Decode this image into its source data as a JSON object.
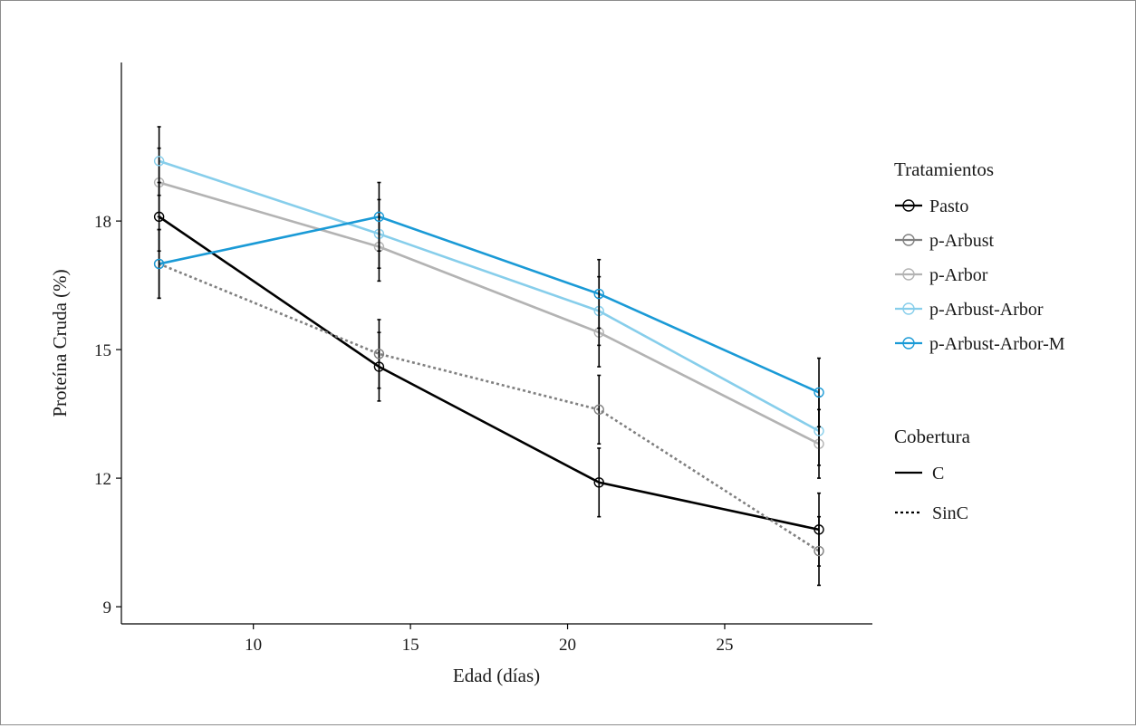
{
  "chart_data": {
    "type": "line",
    "xlabel": "Edad (días)",
    "ylabel": "Proteína Cruda (%)",
    "xlim": [
      5.8,
      29.7
    ],
    "ylim": [
      8.6,
      21.7
    ],
    "x_ticks": [
      10,
      15,
      20,
      25
    ],
    "y_ticks": [
      9,
      12,
      15,
      18
    ],
    "grid": false,
    "legend_position": "right",
    "x": [
      7,
      14,
      21,
      28
    ],
    "series": [
      {
        "name": "Pasto",
        "cobertura": "C",
        "color": "#000000",
        "values": [
          18.1,
          14.6,
          11.9,
          10.8
        ],
        "err": [
          0.8,
          0.8,
          0.8,
          0.85
        ]
      },
      {
        "name": "p-Arbust",
        "cobertura": "SinC",
        "color": "#808080",
        "values": [
          17.0,
          14.9,
          13.6,
          10.3
        ],
        "err": [
          0.8,
          0.8,
          0.8,
          0.8
        ]
      },
      {
        "name": "p-Arbor",
        "cobertura": "C",
        "color": "#b3b3b3",
        "values": [
          18.9,
          17.4,
          15.4,
          12.8
        ],
        "err": [
          0.8,
          0.8,
          0.8,
          0.8
        ]
      },
      {
        "name": "p-Arbust-Arbor",
        "cobertura": "C",
        "color": "#87ceeb",
        "values": [
          19.4,
          17.7,
          15.9,
          13.1
        ],
        "err": [
          0.8,
          0.8,
          0.8,
          0.8
        ]
      },
      {
        "name": "p-Arbust-Arbor-M",
        "cobertura": "C",
        "color": "#1a9ad6",
        "values": [
          17.0,
          18.1,
          16.3,
          14.0
        ],
        "err": [
          0.8,
          0.8,
          0.8,
          0.8
        ]
      }
    ]
  },
  "legend": {
    "treatments_title": "Tratamientos",
    "treatments": [
      {
        "label": "Pasto",
        "color": "#000000"
      },
      {
        "label": "p-Arbust",
        "color": "#808080"
      },
      {
        "label": "p-Arbor",
        "color": "#b3b3b3"
      },
      {
        "label": "p-Arbust-Arbor",
        "color": "#87ceeb"
      },
      {
        "label": "p-Arbust-Arbor-M",
        "color": "#1a9ad6"
      }
    ],
    "cover_title": "Cobertura",
    "cover": [
      {
        "label": "C",
        "style": "solid"
      },
      {
        "label": "SinC",
        "style": "dotted"
      }
    ]
  }
}
